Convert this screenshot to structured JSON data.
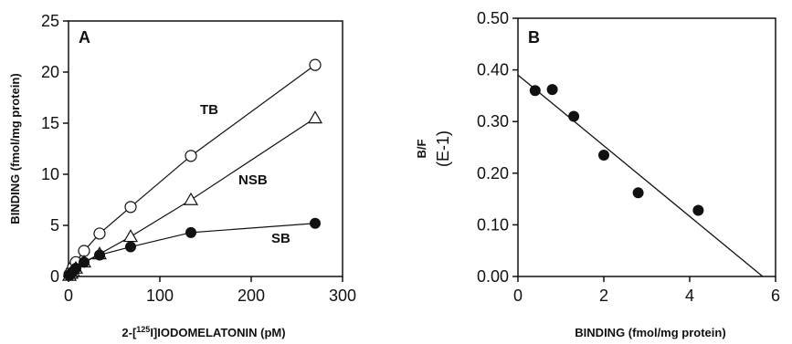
{
  "chart_data": [
    {
      "type": "line",
      "panel_label": "A",
      "xlabel": "2-[125I]IODOMELATONIN (pM)",
      "xlabel_parts": {
        "pre": "2-[",
        "sup": "125",
        "post": "I]IODOMELATONIN (pM)"
      },
      "ylabel": "BINDING (fmol/mg protein)",
      "xlim": [
        0,
        300
      ],
      "ylim": [
        0,
        25
      ],
      "xticks": [
        "0",
        "100",
        "200",
        "300"
      ],
      "yticks": [
        "0",
        "5",
        "10",
        "15",
        "20",
        "25"
      ],
      "grid": false,
      "series": [
        {
          "name": "TB",
          "marker": "open-circle",
          "x": [
            1,
            3,
            5,
            8,
            17,
            34,
            68,
            134,
            270
          ],
          "y": [
            0.2,
            0.5,
            0.9,
            1.4,
            2.5,
            4.2,
            6.8,
            11.8,
            20.7
          ]
        },
        {
          "name": "NSB",
          "marker": "open-triangle",
          "x": [
            1,
            3,
            5,
            8,
            17,
            34,
            68,
            134,
            270
          ],
          "y": [
            0.1,
            0.3,
            0.5,
            0.8,
            1.4,
            2.2,
            3.9,
            7.5,
            15.5
          ]
        },
        {
          "name": "SB",
          "marker": "filled-circle",
          "x": [
            1,
            3,
            5,
            8,
            17,
            34,
            68,
            134,
            270
          ],
          "y": [
            0.1,
            0.3,
            0.5,
            0.8,
            1.4,
            2.1,
            2.9,
            4.3,
            5.2
          ]
        }
      ]
    },
    {
      "type": "scatter",
      "panel_label": "B",
      "xlabel": "BINDING (fmol/mg protein)",
      "ylabel": "B/F",
      "ylabel2": "(E-1)",
      "xlim": [
        0,
        6
      ],
      "ylim": [
        0,
        0.5
      ],
      "xticks": [
        "0",
        "2",
        "4",
        "6"
      ],
      "yticks": [
        "0.00",
        "0.10",
        "0.20",
        "0.30",
        "0.40",
        "0.50"
      ],
      "grid": false,
      "series": [
        {
          "marker": "filled-circle",
          "x": [
            0.4,
            0.8,
            1.3,
            2.0,
            2.8,
            4.2
          ],
          "y": [
            0.36,
            0.362,
            0.31,
            0.235,
            0.162,
            0.128
          ]
        }
      ],
      "fit_line": {
        "x": [
          0,
          5.7
        ],
        "y": [
          0.39,
          0.0
        ]
      }
    }
  ]
}
